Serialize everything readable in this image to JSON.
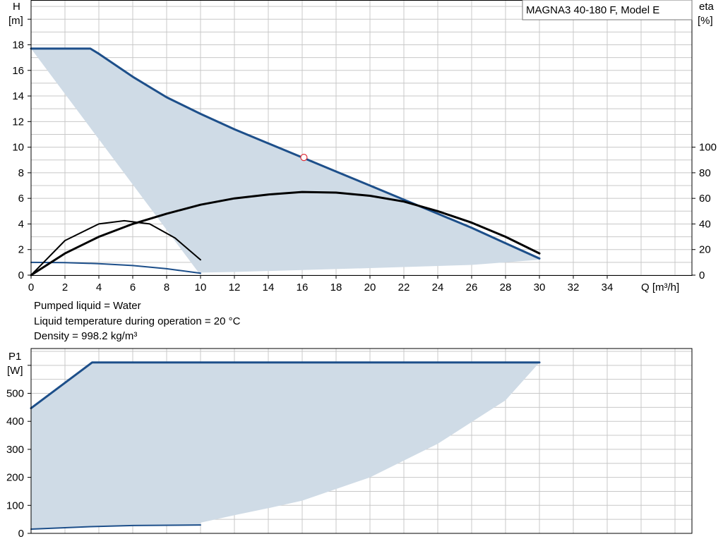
{
  "chart_data": [
    {
      "type": "line",
      "title": "MAGNA3 40-180 F, Model E",
      "xlabel": "Q [m³/h]",
      "ylabel_left": "H",
      "ylabel_left_unit": "[m]",
      "ylabel_right": "eta",
      "ylabel_right_unit": "[%]",
      "xlim": [
        0,
        39
      ],
      "ylim_left": [
        0,
        21.5
      ],
      "ylim_right": [
        0,
        215
      ],
      "x_ticks": [
        0,
        2,
        4,
        6,
        8,
        10,
        12,
        14,
        16,
        18,
        20,
        22,
        24,
        26,
        28,
        30,
        32,
        34
      ],
      "y_ticks_left": [
        0,
        2,
        4,
        6,
        8,
        10,
        12,
        14,
        16,
        18
      ],
      "y_ticks_right": [
        0,
        20,
        40,
        60,
        80,
        100
      ],
      "grid": true,
      "colors": {
        "head": "#1d4f8a",
        "efficiency": "#000000",
        "area": "#cfdbe6",
        "duty_point": "#e0303a"
      },
      "operating_area": {
        "x": [
          0,
          3.5,
          6,
          8,
          10,
          12,
          14,
          16,
          18,
          20,
          22,
          24,
          26,
          28,
          30,
          30,
          26,
          20,
          16,
          12,
          10,
          10
        ],
        "y": [
          17.7,
          17.7,
          15.5,
          13.9,
          12.6,
          11.4,
          10.3,
          9.2,
          8.1,
          7.0,
          5.9,
          4.8,
          3.7,
          2.5,
          1.3,
          1.2,
          0.8,
          0.55,
          0.4,
          0.25,
          0.2,
          0
        ]
      },
      "series": [
        {
          "role": "head-max",
          "color": "#1d4f8a",
          "x": [
            0,
            3.5,
            4,
            6,
            8,
            10,
            12,
            14,
            16,
            18,
            20,
            22,
            24,
            26,
            28,
            30
          ],
          "y": [
            17.7,
            17.7,
            17.3,
            15.5,
            13.9,
            12.6,
            11.4,
            10.3,
            9.2,
            8.1,
            7.0,
            5.9,
            4.8,
            3.7,
            2.5,
            1.3
          ]
        },
        {
          "role": "head-min",
          "color": "#1d4f8a",
          "x": [
            0,
            2,
            4,
            6,
            8,
            10
          ],
          "y": [
            1.0,
            0.98,
            0.9,
            0.75,
            0.5,
            0.15
          ]
        },
        {
          "role": "efficiency-max",
          "color": "#000000",
          "axis": "right",
          "x": [
            0,
            2,
            4,
            6,
            8,
            10,
            12,
            14,
            16,
            18,
            20,
            22,
            24,
            26,
            28,
            30
          ],
          "y": [
            0,
            17,
            30,
            40,
            48,
            55,
            60,
            63,
            65,
            64.5,
            62,
            57.5,
            50,
            41,
            30,
            17
          ]
        },
        {
          "role": "efficiency-min",
          "color": "#000000",
          "axis": "right",
          "x": [
            0,
            2,
            4,
            5.5,
            7,
            8.5,
            10
          ],
          "y": [
            0,
            27,
            40,
            42.5,
            40,
            29,
            12
          ]
        }
      ],
      "duty_point": {
        "x": 16.1,
        "y": 9.2
      },
      "notes": [
        "Pumped liquid = Water",
        "Liquid temperature during operation = 20 °C",
        "Density = 998.2 kg/m³"
      ]
    },
    {
      "type": "line",
      "ylabel": "P1",
      "ylabel_unit": "[W]",
      "xlim": [
        0,
        39
      ],
      "ylim": [
        0,
        660
      ],
      "y_ticks": [
        0,
        100,
        200,
        300,
        400,
        500
      ],
      "grid": true,
      "operating_area": {
        "x": [
          0,
          3.6,
          30,
          28,
          24,
          20,
          16,
          14,
          12,
          10,
          10,
          6,
          3.5,
          0
        ],
        "y": [
          447,
          610,
          610,
          475,
          320,
          200,
          117,
          90,
          65,
          38,
          30,
          28,
          24,
          15
        ]
      },
      "series": [
        {
          "role": "power-max",
          "color": "#1d4f8a",
          "x": [
            0,
            3.6,
            30
          ],
          "y": [
            447,
            610,
            610
          ]
        },
        {
          "role": "power-min",
          "color": "#1d4f8a",
          "x": [
            0,
            3.5,
            6,
            10
          ],
          "y": [
            15,
            24,
            28,
            30
          ]
        }
      ]
    }
  ]
}
